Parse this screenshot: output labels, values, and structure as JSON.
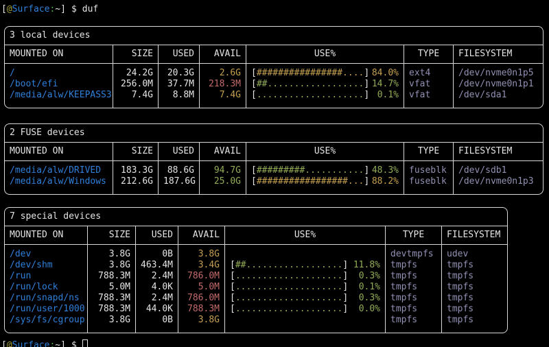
{
  "colors": {
    "background": "#000000",
    "foreground": "#e5e5e5",
    "border": "#d9d9d9",
    "blue": "#2f80da",
    "green": "#93ad56",
    "yellow": "#c5a050",
    "red": "#c26a6a",
    "lavender": "#9191b4",
    "olive": "#a6a438",
    "prompt_green": "#4eae4e"
  },
  "prompt": {
    "open": "[",
    "at": "@",
    "host": "Surface",
    "colon": ":",
    "path": "~",
    "close": "]",
    "dollar": "$",
    "command": "duf"
  },
  "tables": [
    {
      "id": "local-devices",
      "title": "3 local devices",
      "headers": [
        "MOUNTED ON",
        "SIZE",
        "USED",
        "AVAIL",
        "USE%",
        "TYPE",
        "FILESYSTEM"
      ],
      "rows": [
        {
          "mounted_on": "/",
          "size": "24.2G",
          "used": "20.3G",
          "avail": "2.6G",
          "avail_color": "yellow",
          "bar": "################....",
          "use_pct": "84.0%",
          "use_color": "yellow",
          "type": "ext4",
          "filesystem": "/dev/nvme0n1p5"
        },
        {
          "mounted_on": "/boot/efi",
          "size": "256.0M",
          "used": "37.7M",
          "avail": "218.3M",
          "avail_color": "red",
          "bar": "##..................",
          "use_pct": "14.7%",
          "use_color": "green",
          "type": "vfat",
          "filesystem": "/dev/nvme0n1p1"
        },
        {
          "mounted_on": "/media/alw/KEEPASS3",
          "size": "7.4G",
          "used": "8.8M",
          "avail": "7.4G",
          "avail_color": "yellow",
          "bar": "....................",
          "use_pct": "0.1%",
          "use_color": "green",
          "type": "vfat",
          "filesystem": "/dev/sda1"
        }
      ]
    },
    {
      "id": "fuse-devices",
      "title": "2 FUSE devices",
      "headers": [
        "MOUNTED ON",
        "SIZE",
        "USED",
        "AVAIL",
        "USE%",
        "TYPE",
        "FILESYSTEM"
      ],
      "rows": [
        {
          "mounted_on": "/media/alw/DRIVED",
          "size": "183.3G",
          "used": "88.6G",
          "avail": "94.7G",
          "avail_color": "green",
          "bar": "#########...........",
          "use_pct": "48.3%",
          "use_color": "green",
          "type": "fuseblk",
          "filesystem": "/dev/sdb1"
        },
        {
          "mounted_on": "/media/alw/Windows",
          "size": "212.6G",
          "used": "187.6G",
          "avail": "25.0G",
          "avail_color": "green",
          "bar": "#################...",
          "use_pct": "88.2%",
          "use_color": "yellow",
          "type": "fuseblk",
          "filesystem": "/dev/nvme0n1p3"
        }
      ]
    },
    {
      "id": "special-devices",
      "title": "7 special devices",
      "headers": [
        "MOUNTED ON",
        "SIZE",
        "USED",
        "AVAIL",
        "USE%",
        "TYPE",
        "FILESYSTEM"
      ],
      "rows": [
        {
          "mounted_on": "/dev",
          "size": "3.8G",
          "used": "0B",
          "avail": "3.8G",
          "avail_color": "yellow",
          "bar": null,
          "use_pct": null,
          "use_color": null,
          "type": "devtmpfs",
          "filesystem": "udev"
        },
        {
          "mounted_on": "/dev/shm",
          "size": "3.8G",
          "used": "463.4M",
          "avail": "3.4G",
          "avail_color": "yellow",
          "bar": "##..................",
          "use_pct": "11.8%",
          "use_color": "green",
          "type": "tmpfs",
          "filesystem": "tmpfs"
        },
        {
          "mounted_on": "/run",
          "size": "788.3M",
          "used": "2.4M",
          "avail": "786.0M",
          "avail_color": "red",
          "bar": "....................",
          "use_pct": "0.3%",
          "use_color": "green",
          "type": "tmpfs",
          "filesystem": "tmpfs"
        },
        {
          "mounted_on": "/run/lock",
          "size": "5.0M",
          "used": "4.0K",
          "avail": "5.0M",
          "avail_color": "red",
          "bar": "....................",
          "use_pct": "0.1%",
          "use_color": "green",
          "type": "tmpfs",
          "filesystem": "tmpfs"
        },
        {
          "mounted_on": "/run/snapd/ns",
          "size": "788.3M",
          "used": "2.4M",
          "avail": "786.0M",
          "avail_color": "red",
          "bar": "....................",
          "use_pct": "0.3%",
          "use_color": "green",
          "type": "tmpfs",
          "filesystem": "tmpfs"
        },
        {
          "mounted_on": "/run/user/1000",
          "size": "788.3M",
          "used": "44.0K",
          "avail": "788.3M",
          "avail_color": "red",
          "bar": "....................",
          "use_pct": "0.0%",
          "use_color": "green",
          "type": "tmpfs",
          "filesystem": "tmpfs"
        },
        {
          "mounted_on": "/sys/fs/cgroup",
          "size": "3.8G",
          "used": "0B",
          "avail": "3.8G",
          "avail_color": "yellow",
          "bar": null,
          "use_pct": null,
          "use_color": null,
          "type": "tmpfs",
          "filesystem": "tmpfs"
        }
      ]
    }
  ]
}
